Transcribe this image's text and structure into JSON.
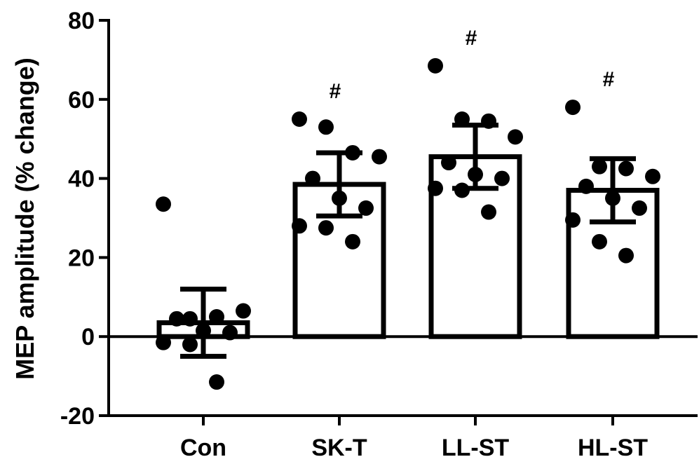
{
  "chart_data": {
    "type": "bar",
    "title": "",
    "xlabel": "",
    "ylabel": "MEP amplitude (% change)",
    "ylim": [
      -20,
      80
    ],
    "yticks": [
      -20,
      0,
      20,
      40,
      60,
      80
    ],
    "categories": [
      "Con",
      "SK-T",
      "LL-ST",
      "HL-ST"
    ],
    "series": [
      {
        "values": [
          3.5,
          38.5,
          45.5,
          37
        ],
        "error": [
          8.5,
          8,
          8,
          8
        ],
        "points": [
          [
            33.5,
            4.5,
            5,
            6.5,
            4.5,
            1.5,
            1,
            -1.5,
            -2,
            -11.5
          ],
          [
            55,
            53,
            46.5,
            45.5,
            40,
            35,
            32.5,
            28,
            27.5,
            24
          ],
          [
            68.5,
            55,
            54.5,
            50.5,
            44,
            41,
            40,
            37.5,
            37,
            31.5
          ],
          [
            58,
            43,
            42.5,
            40.5,
            38,
            35,
            32.5,
            29.5,
            24,
            20.5
          ]
        ],
        "markers": [
          "",
          "#",
          "#",
          "#"
        ]
      }
    ],
    "zero_line": true,
    "grid": false,
    "legend": "none"
  }
}
